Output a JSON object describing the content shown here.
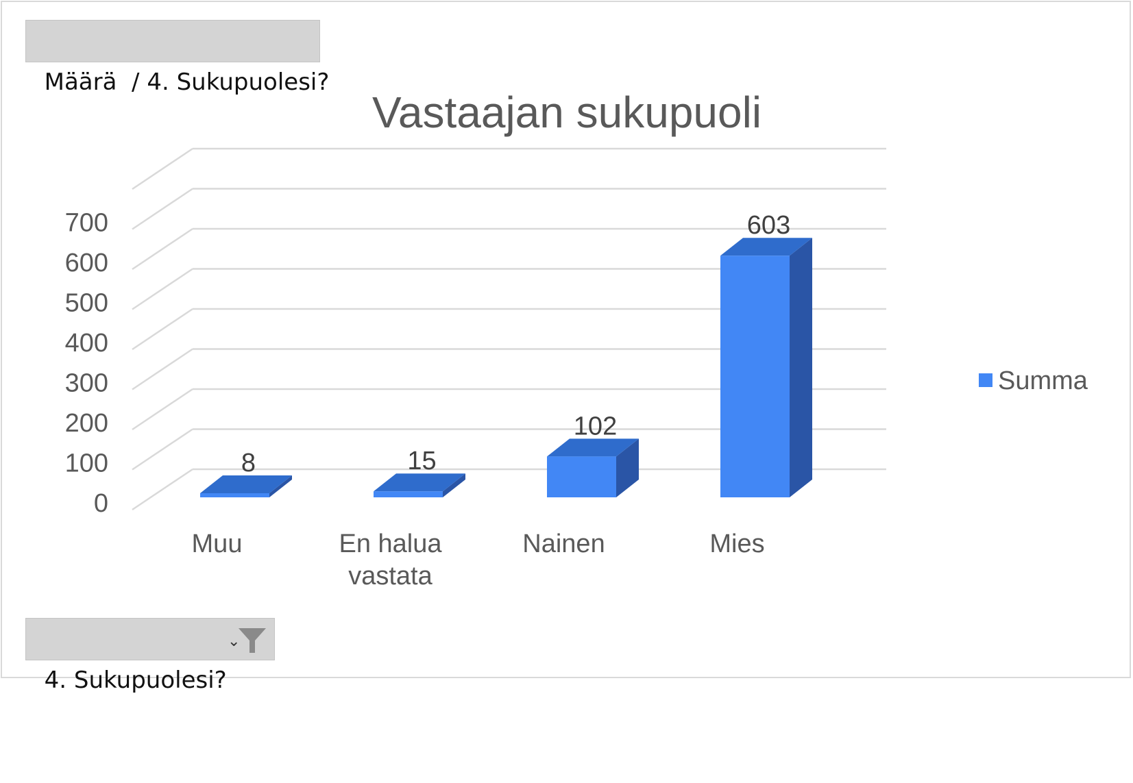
{
  "pivot": {
    "value_field_label": "Määrä  / 4. Sukupuolesi?",
    "axis_field_label": "4. Sukupuolesi?",
    "dropdown_glyph": "⌄",
    "filter_icon": "funnel-icon"
  },
  "colors": {
    "bar_front": "#4287f5",
    "bar_top": "#2f6ccc",
    "bar_side": "#2a55a6",
    "grid": "#d9d9d9",
    "text": "#595959"
  },
  "chart_data": {
    "type": "bar",
    "title": "Vastaajan sukupuoli",
    "categories": [
      "Muu",
      "En halua vastata",
      "Nainen",
      "Mies"
    ],
    "category_lines": [
      [
        "Muu"
      ],
      [
        "En halua",
        "vastata"
      ],
      [
        "Nainen"
      ],
      [
        "Mies"
      ]
    ],
    "series": [
      {
        "name": "Summa",
        "values": [
          8,
          15,
          102,
          603
        ]
      }
    ],
    "data_labels": [
      "8",
      "15",
      "102",
      "603"
    ],
    "yticks": [
      "0",
      "100",
      "200",
      "300",
      "400",
      "500",
      "600",
      "700"
    ],
    "ylim": [
      0,
      800
    ],
    "grid": true,
    "legend": "right",
    "style": "3d-clustered-column"
  }
}
